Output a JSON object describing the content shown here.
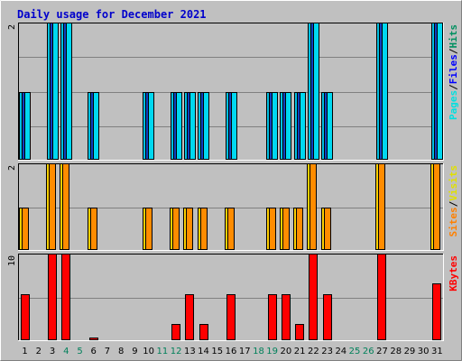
{
  "chart_data": {
    "type": "bar",
    "title": "Daily usage for December 2021",
    "x": [
      1,
      2,
      3,
      4,
      5,
      6,
      7,
      8,
      9,
      10,
      11,
      12,
      13,
      14,
      15,
      16,
      17,
      18,
      19,
      20,
      21,
      22,
      23,
      24,
      25,
      26,
      27,
      28,
      29,
      30,
      31
    ],
    "weekend_days": [
      4,
      5,
      11,
      12,
      18,
      19,
      25,
      26
    ],
    "panels": [
      {
        "id": "hits",
        "ymax_label": "2",
        "ylim": [
          0,
          2
        ],
        "legend": [
          {
            "text": "Pages",
            "color": "#00e0e0"
          },
          {
            "text": "/",
            "color": "#000000"
          },
          {
            "text": "Files",
            "color": "#0000ff"
          },
          {
            "text": "/",
            "color": "#000000"
          },
          {
            "text": "Hits",
            "color": "#009060"
          }
        ],
        "series": [
          {
            "name": "Hits",
            "color": "#00c0e0",
            "values": [
              1,
              0,
              2,
              2,
              0,
              1,
              0,
              0,
              0,
              1,
              0,
              1,
              1,
              1,
              0,
              1,
              0,
              0,
              1,
              1,
              1,
              2,
              1,
              0,
              0,
              0,
              2,
              0,
              0,
              0,
              2
            ]
          },
          {
            "name": "Files",
            "color": "#1040c0",
            "values": [
              1,
              0,
              2,
              2,
              0,
              1,
              0,
              0,
              0,
              1,
              0,
              1,
              1,
              1,
              0,
              1,
              0,
              0,
              1,
              1,
              1,
              2,
              1,
              0,
              0,
              0,
              2,
              0,
              0,
              0,
              2
            ]
          },
          {
            "name": "Pages",
            "color": "#00d8f0",
            "values": [
              1,
              0,
              2,
              2,
              0,
              1,
              0,
              0,
              0,
              1,
              0,
              1,
              1,
              1,
              0,
              1,
              0,
              0,
              1,
              1,
              1,
              2,
              1,
              0,
              0,
              0,
              2,
              0,
              0,
              0,
              2
            ]
          }
        ]
      },
      {
        "id": "visits",
        "ymax_label": "2",
        "ylim": [
          0,
          2
        ],
        "legend": [
          {
            "text": "Sites",
            "color": "#ff8000"
          },
          {
            "text": "/",
            "color": "#000000"
          },
          {
            "text": "Visits",
            "color": "#e0e000"
          }
        ],
        "series": [
          {
            "name": "Visits",
            "color": "#ffd000",
            "values": [
              1,
              0,
              2,
              2,
              0,
              1,
              0,
              0,
              0,
              1,
              0,
              1,
              1,
              1,
              0,
              1,
              0,
              0,
              1,
              1,
              1,
              2,
              1,
              0,
              0,
              0,
              2,
              0,
              0,
              0,
              2
            ]
          },
          {
            "name": "Sites",
            "color": "#ff8c00",
            "values": [
              1,
              0,
              2,
              2,
              0,
              1,
              0,
              0,
              0,
              1,
              0,
              1,
              1,
              1,
              0,
              1,
              0,
              0,
              1,
              1,
              1,
              2,
              1,
              0,
              0,
              0,
              2,
              0,
              0,
              0,
              2
            ]
          }
        ]
      },
      {
        "id": "kbytes",
        "ymax_label": "10",
        "ylim": [
          0,
          10
        ],
        "legend": [
          {
            "text": "KBytes",
            "color": "#ff0000"
          }
        ],
        "series": [
          {
            "name": "KBytes",
            "color": "#ff0000",
            "values": [
              5.4,
              0,
              10,
              10,
              0,
              0.4,
              0,
              0,
              0,
              0,
              0,
              2,
              5.4,
              2,
              0,
              5.4,
              0,
              0,
              5.4,
              5.4,
              2,
              10,
              5.4,
              0,
              0,
              0,
              10,
              0,
              0,
              0,
              6.6
            ]
          }
        ]
      }
    ]
  }
}
